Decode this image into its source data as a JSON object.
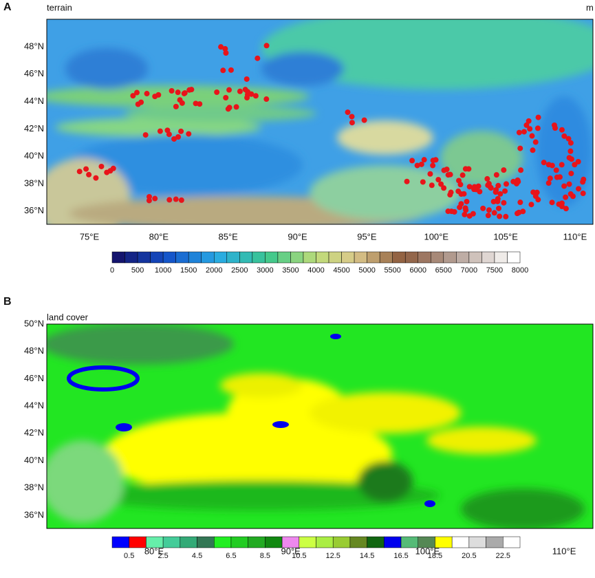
{
  "panels": [
    {
      "label": "A",
      "title": "terrain",
      "unit": "m",
      "lat_labels": [
        "48°N",
        "46°N",
        "44°N",
        "42°N",
        "40°N",
        "38°N",
        "36°N"
      ],
      "lon_labels": [
        "75°E",
        "80°E",
        "85°E",
        "90°E",
        "95°E",
        "100°E",
        "105°E",
        "110°E"
      ],
      "colorbar_labels": [
        "0",
        "500",
        "1000",
        "1500",
        "2000",
        "2500",
        "3000",
        "3500",
        "4000",
        "4500",
        "5000",
        "5500",
        "6000",
        "6500",
        "7000",
        "7500",
        "8000"
      ]
    },
    {
      "label": "B",
      "title": "land cover",
      "lat_labels": [
        "50°N",
        "48°N",
        "46°N",
        "44°N",
        "42°N",
        "40°N",
        "38°N",
        "36°N"
      ],
      "lon_labels": [
        "80°E",
        "90°E",
        "100°E",
        "110°E"
      ],
      "colorbar_labels": [
        "0.5",
        "2.5",
        "4.5",
        "6.5",
        "8.5",
        "10.5",
        "12.5",
        "14.5",
        "16.5",
        "18.5",
        "20.5",
        "22.5"
      ]
    }
  ]
}
